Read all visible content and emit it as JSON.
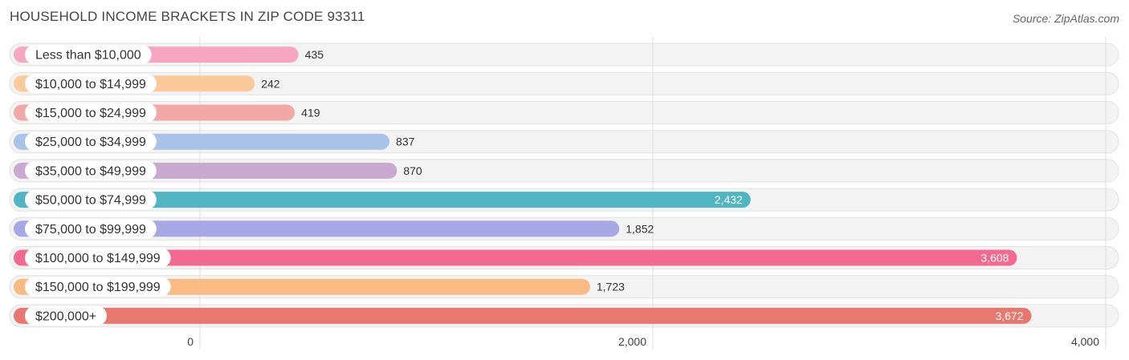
{
  "header": {
    "title": "HOUSEHOLD INCOME BRACKETS IN ZIP CODE 93311",
    "source": "Source: ZipAtlas.com"
  },
  "chart_data": {
    "type": "bar",
    "orientation": "horizontal",
    "title": "HOUSEHOLD INCOME BRACKETS IN ZIP CODE 93311",
    "xlabel": "",
    "ylabel": "",
    "xlim": [
      0,
      4000
    ],
    "grid": true,
    "ticks": [
      {
        "value": 0,
        "label": "0"
      },
      {
        "value": 2000,
        "label": "2,000"
      },
      {
        "value": 4000,
        "label": "4,000"
      }
    ],
    "categories": [
      "Less than $10,000",
      "$10,000 to $14,999",
      "$15,000 to $24,999",
      "$25,000 to $34,999",
      "$35,000 to $49,999",
      "$50,000 to $74,999",
      "$75,000 to $99,999",
      "$100,000 to $149,999",
      "$150,000 to $199,999",
      "$200,000+"
    ],
    "values": [
      435,
      242,
      419,
      837,
      870,
      2432,
      1852,
      3608,
      1723,
      3672
    ],
    "value_labels": [
      "435",
      "242",
      "419",
      "837",
      "870",
      "2,432",
      "1,852",
      "3,608",
      "1,723",
      "3,672"
    ],
    "colors": [
      "#f7a6c1",
      "#fbc99a",
      "#f2a9a6",
      "#a7c3e8",
      "#c9a9d0",
      "#4fb5c3",
      "#a6a8e6",
      "#f3698f",
      "#f9bb83",
      "#e8776f"
    ],
    "label_inside": [
      false,
      false,
      false,
      false,
      false,
      true,
      false,
      true,
      false,
      true
    ]
  }
}
